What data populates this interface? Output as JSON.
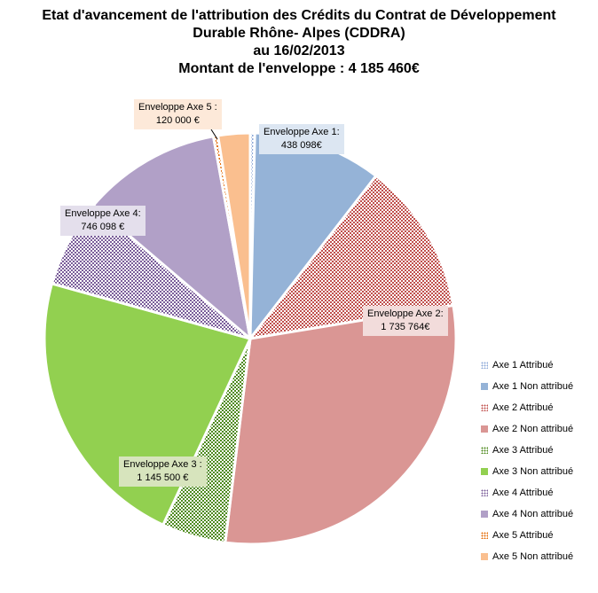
{
  "title_lines": [
    "Etat d'avancement de l'attribution des Crédits du  Contrat de Développement",
    "Durable Rhône- Alpes (CDDRA)",
    "au 16/02/2013",
    "Montant de l'enveloppe : 4 185 460€"
  ],
  "callouts": {
    "axe1": {
      "label": "Enveloppe Axe 1:",
      "value": "438 098€"
    },
    "axe2": {
      "label": "Enveloppe Axe 2:",
      "value": "1 735 764€"
    },
    "axe3": {
      "label": "Enveloppe Axe 3 :",
      "value": "1 145 500 €"
    },
    "axe4": {
      "label": "Enveloppe Axe 4:",
      "value": "746 098 €"
    },
    "axe5": {
      "label": "Enveloppe Axe 5 :",
      "value": "120 000 €"
    }
  },
  "chart_data": {
    "type": "pie",
    "title": "Etat d'avancement de l'attribution des Crédits du Contrat de Développement Durable Rhône- Alpes (CDDRA) au 16/02/2013 — Montant de l'enveloppe : 4 185 460€",
    "legend_position": "right",
    "slices": [
      {
        "name": "Axe 1 Attribué",
        "value": 15000,
        "color": "#8EA9D8",
        "pattern": true
      },
      {
        "name": "Axe 1 Non attribué",
        "value": 423098,
        "color": "#95B3D7",
        "pattern": false
      },
      {
        "name": "Axe 2 Attribué",
        "value": 500000,
        "color": "#C0504D",
        "pattern": true
      },
      {
        "name": "Axe 2 Non attribué",
        "value": 1235764,
        "color": "#DA9694",
        "pattern": false
      },
      {
        "name": "Axe 3 Attribué",
        "value": 210000,
        "color": "#4E8A1E",
        "pattern": true
      },
      {
        "name": "Axe 3 Non attribué",
        "value": 935500,
        "color": "#92D050",
        "pattern": false
      },
      {
        "name": "Axe 4 Attribué",
        "value": 290000,
        "color": "#7B5E9A",
        "pattern": true
      },
      {
        "name": "Axe 4 Non attribué",
        "value": 456098,
        "color": "#B1A0C7",
        "pattern": false
      },
      {
        "name": "Axe 5 Attribué",
        "value": 15000,
        "color": "#E46C0A",
        "pattern": true
      },
      {
        "name": "Axe 5 Non attribué",
        "value": 105000,
        "color": "#FABF8F",
        "pattern": false
      }
    ]
  }
}
